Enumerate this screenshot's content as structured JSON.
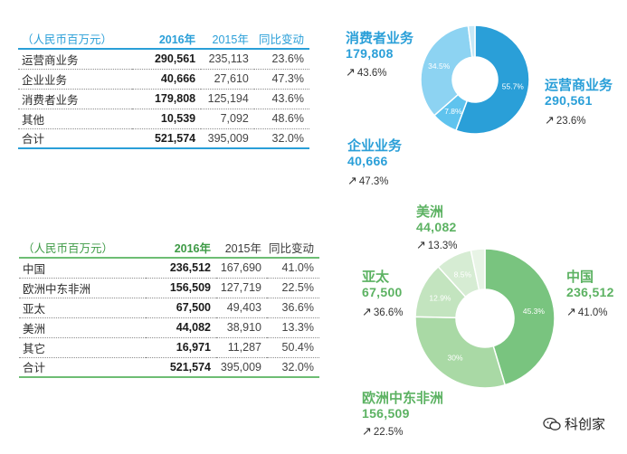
{
  "segment_table": {
    "headers": {
      "unit": "（人民币百万元）",
      "year2016": "2016年",
      "year2015": "2015年",
      "change": "同比变动"
    },
    "rows": [
      {
        "name": "运营商业务",
        "v2016": "290,561",
        "v2015": "235,113",
        "chg": "23.6%"
      },
      {
        "name": "企业业务",
        "v2016": "40,666",
        "v2015": "27,610",
        "chg": "47.3%"
      },
      {
        "name": "消费者业务",
        "v2016": "179,808",
        "v2015": "125,194",
        "chg": "43.6%"
      },
      {
        "name": "其他",
        "v2016": "10,539",
        "v2015": "7,092",
        "chg": "48.6%"
      },
      {
        "name": "合计",
        "v2016": "521,574",
        "v2015": "395,009",
        "chg": "32.0%"
      }
    ]
  },
  "region_table": {
    "headers": {
      "unit": "（人民币百万元）",
      "year2016": "2016年",
      "year2015": "2015年",
      "change": "同比变动"
    },
    "rows": [
      {
        "name": "中国",
        "v2016": "236,512",
        "v2015": "167,690",
        "chg": "41.0%"
      },
      {
        "name": "欧洲中东非洲",
        "v2016": "156,509",
        "v2015": "127,719",
        "chg": "22.5%"
      },
      {
        "name": "亚太",
        "v2016": "67,500",
        "v2015": "49,403",
        "chg": "36.6%"
      },
      {
        "name": "美洲",
        "v2016": "44,082",
        "v2015": "38,910",
        "chg": "13.3%"
      },
      {
        "name": "其它",
        "v2016": "16,971",
        "v2015": "11,287",
        "chg": "50.4%"
      },
      {
        "name": "合计",
        "v2016": "521,574",
        "v2015": "395,009",
        "chg": "32.0%"
      }
    ]
  },
  "chart_data": [
    {
      "type": "pie",
      "title": "",
      "categories": [
        "运营商业务",
        "企业业务",
        "消费者业务",
        "其他"
      ],
      "values": [
        290561,
        40666,
        179808,
        10539
      ],
      "percent_labels": [
        "55.7%",
        "7.8%",
        "34.5%",
        ""
      ],
      "colors": [
        "#2a9fd8",
        "#5fc3ee",
        "#8dd3f2",
        "#c6e8f7"
      ],
      "callouts": [
        {
          "name": "消费者业务",
          "value": "179,808",
          "growth": "43.6%"
        },
        {
          "name": "运营商业务",
          "value": "290,561",
          "growth": "23.6%"
        },
        {
          "name": "企业业务",
          "value": "40,666",
          "growth": "47.3%"
        }
      ]
    },
    {
      "type": "pie",
      "title": "",
      "categories": [
        "中国",
        "欧洲中东非洲",
        "亚太",
        "美洲",
        "其它"
      ],
      "values": [
        236512,
        156509,
        67500,
        44082,
        16971
      ],
      "percent_labels": [
        "45.3%",
        "30%",
        "12.9%",
        "8.5%",
        ""
      ],
      "colors": [
        "#79c47f",
        "#a9d9a5",
        "#c3e4bf",
        "#d6ecd3",
        "#e8f4e6"
      ],
      "callouts": [
        {
          "name": "美洲",
          "value": "44,082",
          "growth": "13.3%"
        },
        {
          "name": "中国",
          "value": "236,512",
          "growth": "41.0%"
        },
        {
          "name": "亚太",
          "value": "67,500",
          "growth": "36.6%"
        },
        {
          "name": "欧洲中东非洲",
          "value": "156,509",
          "growth": "22.5%"
        }
      ]
    }
  ],
  "arrow_glyph": "↗",
  "watermark": {
    "text": "科创家",
    "icon": "wechat-icon"
  }
}
